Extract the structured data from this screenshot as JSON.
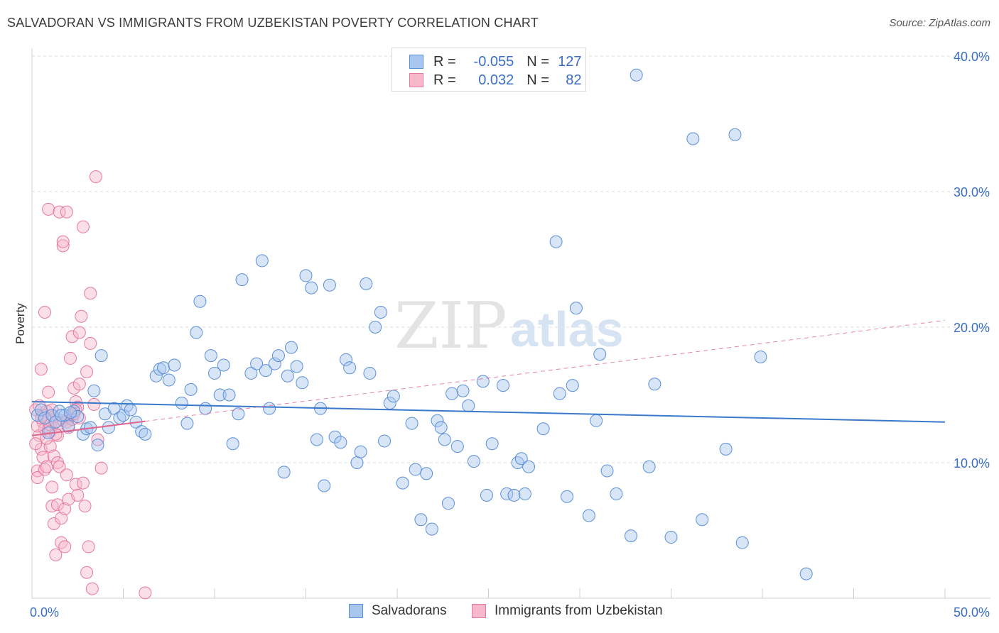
{
  "title": "SALVADORAN VS IMMIGRANTS FROM UZBEKISTAN POVERTY CORRELATION CHART",
  "source": "Source: ZipAtlas.com",
  "watermark": {
    "zip": "ZIP",
    "atlas": "atlas"
  },
  "legend": {
    "r_label": "R =",
    "n_label": "N =",
    "rows": [
      {
        "r": "-0.055",
        "n": "127"
      },
      {
        "r": "0.032",
        "n": "82"
      }
    ]
  },
  "colors": {
    "blue_fill": "#a9c6ee",
    "blue_stroke": "#5b8fd8",
    "blue_line": "#3a78cc",
    "pink_fill": "#f7b8cb",
    "pink_stroke": "#e8789c",
    "pink_line": "#e06690",
    "grid": "#dcdcdc",
    "axis_text": "#3a6fc4"
  },
  "chart_data": {
    "type": "scatter",
    "title": "SALVADORAN VS IMMIGRANTS FROM UZBEKISTAN POVERTY CORRELATION CHART",
    "ylabel": "Poverty",
    "xlim": [
      0,
      50
    ],
    "ylim": [
      0,
      40
    ],
    "x_tick_labels": [
      {
        "value": 0,
        "label": "0.0%"
      },
      {
        "value": 50,
        "label": "50.0%"
      }
    ],
    "y_tick_labels": [
      {
        "value": 10,
        "label": "10.0%"
      },
      {
        "value": 20,
        "label": "20.0%"
      },
      {
        "value": 30,
        "label": "30.0%"
      },
      {
        "value": 40,
        "label": "40.0%"
      }
    ],
    "series": [
      {
        "name": "Salvadorans",
        "r": -0.055,
        "n": 127,
        "trend": {
          "x": [
            0,
            50
          ],
          "y": [
            14.5,
            13.0
          ],
          "dashed": false
        },
        "points": [
          [
            0.3,
            13.5
          ],
          [
            0.5,
            13.9
          ],
          [
            0.7,
            13.3
          ],
          [
            0.9,
            12.2
          ],
          [
            1.1,
            13.5
          ],
          [
            1.3,
            13.0
          ],
          [
            1.5,
            13.8
          ],
          [
            1.8,
            13.5
          ],
          [
            2.0,
            12.7
          ],
          [
            2.3,
            13.8
          ],
          [
            2.5,
            13.4
          ],
          [
            2.8,
            12.1
          ],
          [
            3.0,
            12.5
          ],
          [
            3.2,
            12.6
          ],
          [
            3.4,
            15.3
          ],
          [
            3.6,
            11.3
          ],
          [
            3.8,
            17.9
          ],
          [
            4.0,
            13.6
          ],
          [
            4.2,
            12.6
          ],
          [
            4.5,
            14.0
          ],
          [
            4.8,
            13.3
          ],
          [
            5.0,
            13.5
          ],
          [
            5.2,
            14.2
          ],
          [
            5.4,
            13.9
          ],
          [
            5.7,
            13.0
          ],
          [
            6.0,
            12.3
          ],
          [
            6.2,
            12.1
          ],
          [
            6.8,
            16.4
          ],
          [
            7.0,
            16.9
          ],
          [
            7.2,
            17.0
          ],
          [
            7.5,
            16.1
          ],
          [
            7.8,
            17.2
          ],
          [
            8.2,
            14.4
          ],
          [
            8.5,
            12.9
          ],
          [
            8.7,
            15.4
          ],
          [
            9.0,
            19.6
          ],
          [
            9.2,
            21.9
          ],
          [
            9.5,
            14.0
          ],
          [
            9.8,
            17.9
          ],
          [
            10.0,
            16.6
          ],
          [
            10.3,
            15.0
          ],
          [
            10.5,
            17.2
          ],
          [
            10.8,
            15.0
          ],
          [
            11.0,
            11.4
          ],
          [
            11.3,
            13.6
          ],
          [
            11.5,
            23.5
          ],
          [
            12.0,
            16.6
          ],
          [
            12.3,
            17.3
          ],
          [
            12.6,
            24.9
          ],
          [
            12.8,
            16.8
          ],
          [
            13.0,
            14.0
          ],
          [
            13.3,
            17.3
          ],
          [
            13.5,
            17.9
          ],
          [
            13.8,
            9.3
          ],
          [
            14.0,
            16.4
          ],
          [
            14.2,
            18.5
          ],
          [
            14.5,
            17.1
          ],
          [
            14.8,
            15.9
          ],
          [
            15.0,
            23.8
          ],
          [
            15.3,
            22.9
          ],
          [
            15.6,
            11.7
          ],
          [
            15.8,
            14.0
          ],
          [
            16.0,
            8.3
          ],
          [
            16.3,
            23.1
          ],
          [
            16.6,
            11.9
          ],
          [
            16.9,
            11.5
          ],
          [
            17.2,
            17.6
          ],
          [
            17.4,
            17.0
          ],
          [
            17.8,
            10.0
          ],
          [
            18.0,
            10.8
          ],
          [
            18.3,
            23.2
          ],
          [
            18.5,
            16.6
          ],
          [
            18.8,
            20.0
          ],
          [
            19.1,
            21.1
          ],
          [
            19.3,
            11.6
          ],
          [
            19.6,
            14.4
          ],
          [
            19.8,
            14.9
          ],
          [
            20.3,
            8.5
          ],
          [
            20.8,
            12.9
          ],
          [
            21.0,
            9.5
          ],
          [
            21.3,
            5.8
          ],
          [
            21.6,
            9.2
          ],
          [
            21.9,
            5.1
          ],
          [
            22.2,
            13.1
          ],
          [
            22.4,
            12.6
          ],
          [
            22.6,
            11.7
          ],
          [
            22.8,
            7.0
          ],
          [
            23.0,
            15.1
          ],
          [
            23.3,
            11.2
          ],
          [
            23.6,
            15.3
          ],
          [
            23.9,
            14.2
          ],
          [
            24.2,
            10.1
          ],
          [
            24.7,
            16.0
          ],
          [
            24.9,
            7.6
          ],
          [
            25.2,
            11.4
          ],
          [
            25.8,
            15.7
          ],
          [
            26.0,
            7.7
          ],
          [
            26.4,
            7.6
          ],
          [
            26.6,
            10.0
          ],
          [
            26.8,
            10.3
          ],
          [
            27.0,
            7.7
          ],
          [
            27.2,
            9.7
          ],
          [
            28.0,
            12.5
          ],
          [
            28.7,
            26.3
          ],
          [
            28.9,
            15.1
          ],
          [
            29.3,
            7.5
          ],
          [
            29.6,
            15.7
          ],
          [
            29.8,
            21.4
          ],
          [
            30.5,
            6.1
          ],
          [
            30.9,
            13.1
          ],
          [
            31.1,
            18.0
          ],
          [
            31.5,
            9.4
          ],
          [
            32.8,
            4.6
          ],
          [
            32.0,
            7.7
          ],
          [
            33.1,
            38.6
          ],
          [
            33.8,
            9.7
          ],
          [
            34.1,
            15.8
          ],
          [
            35.0,
            4.5
          ],
          [
            36.2,
            33.9
          ],
          [
            36.7,
            5.8
          ],
          [
            38.0,
            11.0
          ],
          [
            38.5,
            34.2
          ],
          [
            38.9,
            4.1
          ],
          [
            39.9,
            17.8
          ],
          [
            42.4,
            1.8
          ],
          [
            1.6,
            13.5
          ],
          [
            2.1,
            13.7
          ]
        ]
      },
      {
        "name": "Immigrants from Uzbekistan",
        "r": 0.032,
        "n": 82,
        "trend": {
          "x": [
            0,
            50
          ],
          "y": [
            12.0,
            20.5
          ],
          "dashed": true,
          "solid_until_x": 6.2
        },
        "points": [
          [
            0.2,
            13.9
          ],
          [
            0.3,
            9.4
          ],
          [
            0.3,
            8.9
          ],
          [
            0.4,
            12.0
          ],
          [
            0.5,
            16.9
          ],
          [
            0.5,
            11.0
          ],
          [
            0.6,
            13.0
          ],
          [
            0.6,
            10.4
          ],
          [
            0.7,
            21.1
          ],
          [
            0.7,
            9.5
          ],
          [
            0.8,
            13.8
          ],
          [
            0.8,
            9.7
          ],
          [
            0.9,
            28.7
          ],
          [
            0.9,
            15.2
          ],
          [
            1.0,
            12.3
          ],
          [
            1.0,
            11.2
          ],
          [
            1.1,
            8.2
          ],
          [
            1.1,
            6.8
          ],
          [
            1.2,
            10.5
          ],
          [
            1.2,
            5.5
          ],
          [
            1.3,
            13.1
          ],
          [
            1.3,
            3.2
          ],
          [
            1.4,
            10.0
          ],
          [
            1.4,
            6.9
          ],
          [
            1.5,
            9.7
          ],
          [
            1.5,
            28.5
          ],
          [
            1.6,
            5.9
          ],
          [
            1.6,
            4.1
          ],
          [
            1.7,
            26.0
          ],
          [
            1.7,
            26.3
          ],
          [
            1.8,
            6.6
          ],
          [
            1.8,
            3.8
          ],
          [
            1.9,
            28.5
          ],
          [
            1.9,
            9.1
          ],
          [
            2.0,
            7.3
          ],
          [
            2.0,
            13.3
          ],
          [
            2.1,
            17.7
          ],
          [
            2.1,
            13.5
          ],
          [
            2.2,
            19.3
          ],
          [
            2.3,
            15.5
          ],
          [
            2.4,
            8.4
          ],
          [
            2.4,
            14.5
          ],
          [
            2.5,
            14.1
          ],
          [
            2.5,
            7.6
          ],
          [
            2.6,
            15.8
          ],
          [
            2.6,
            19.6
          ],
          [
            2.7,
            20.8
          ],
          [
            2.8,
            27.4
          ],
          [
            2.8,
            8.5
          ],
          [
            2.9,
            6.8
          ],
          [
            3.0,
            16.7
          ],
          [
            3.0,
            1.9
          ],
          [
            3.1,
            3.8
          ],
          [
            3.2,
            22.5
          ],
          [
            3.2,
            18.8
          ],
          [
            3.3,
            0.7
          ],
          [
            3.4,
            14.3
          ],
          [
            3.5,
            31.1
          ],
          [
            3.6,
            11.7
          ],
          [
            3.8,
            9.6
          ],
          [
            6.2,
            0.4
          ],
          [
            0.4,
            14.2
          ],
          [
            0.6,
            13.5
          ],
          [
            0.7,
            12.5
          ],
          [
            0.9,
            13.2
          ],
          [
            1.0,
            12.8
          ],
          [
            1.1,
            13.9
          ],
          [
            1.2,
            13.4
          ],
          [
            1.4,
            12.0
          ],
          [
            1.5,
            12.9
          ],
          [
            1.7,
            13.1
          ],
          [
            1.9,
            13.0
          ],
          [
            2.0,
            12.6
          ],
          [
            2.2,
            13.2
          ],
          [
            2.4,
            13.9
          ],
          [
            2.6,
            13.3
          ],
          [
            0.3,
            12.7
          ],
          [
            0.5,
            13.3
          ],
          [
            0.8,
            11.8
          ],
          [
            1.3,
            12.1
          ],
          [
            0.2,
            11.4
          ],
          [
            2.3,
            13.6
          ]
        ]
      }
    ]
  },
  "bottom_legend": [
    {
      "label": "Salvadorans"
    },
    {
      "label": "Immigrants from Uzbekistan"
    }
  ]
}
